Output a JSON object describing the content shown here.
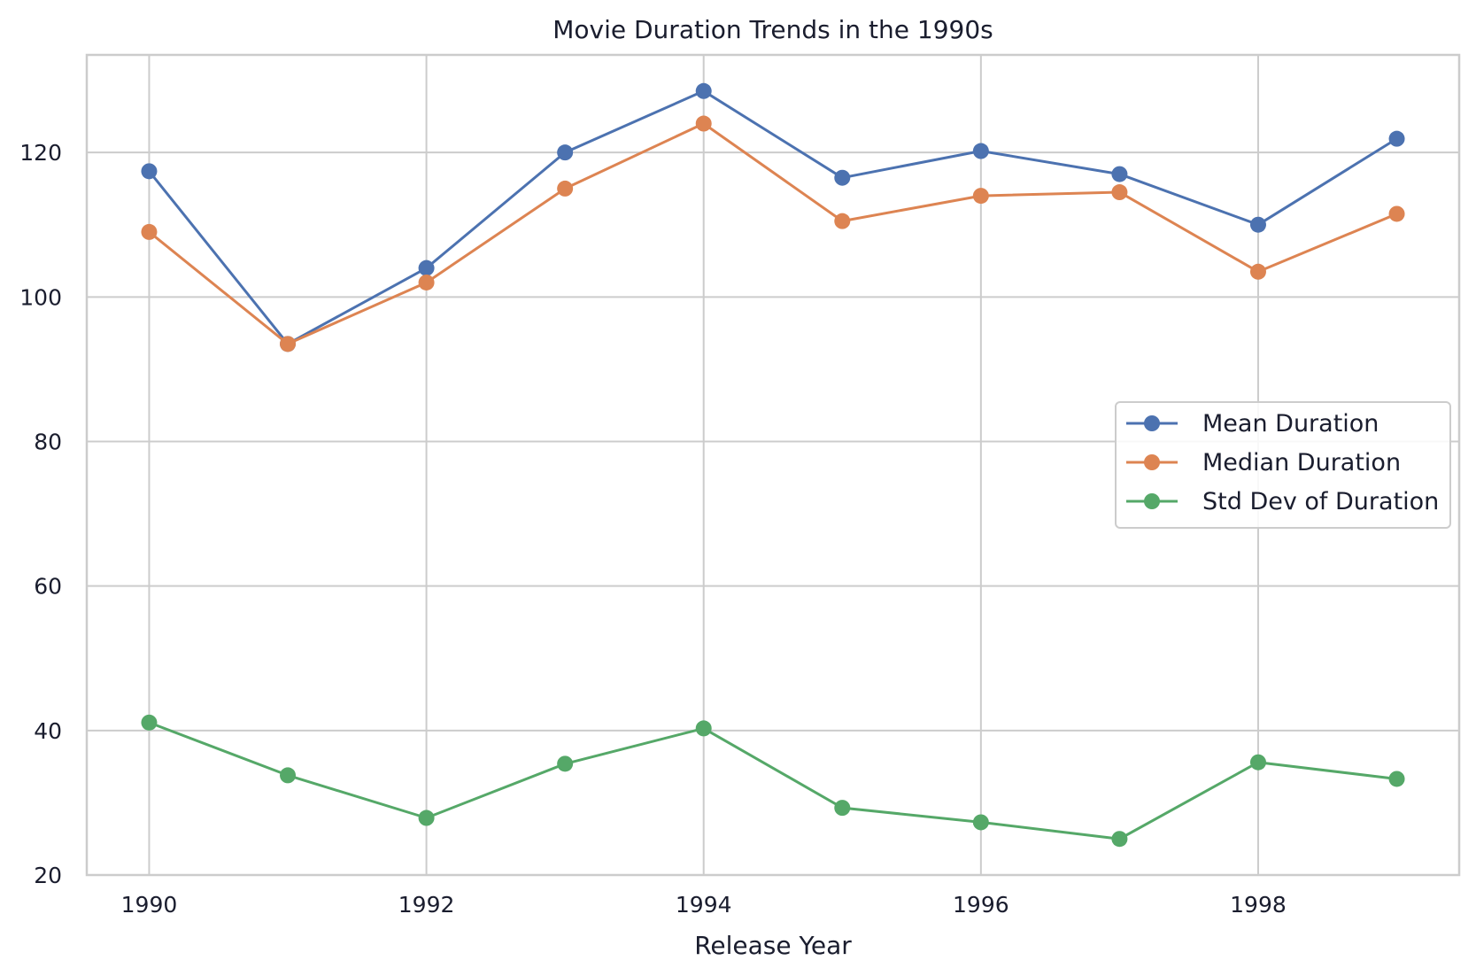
{
  "chart_data": {
    "type": "line",
    "title": "Movie Duration Trends in the 1990s",
    "xlabel": "Release Year",
    "ylabel": "",
    "x": [
      1990,
      1991,
      1992,
      1993,
      1994,
      1995,
      1996,
      1997,
      1998,
      1999
    ],
    "xlim": [
      1989.55,
      1999.45
    ],
    "ylim": [
      20,
      133.5
    ],
    "xticks": [
      1990,
      1992,
      1994,
      1996,
      1998
    ],
    "yticks": [
      20,
      40,
      60,
      80,
      100,
      120
    ],
    "grid": true,
    "legend_position": "center-right",
    "series": [
      {
        "name": "Mean Duration",
        "color": "#4c72b0",
        "marker": "circle",
        "values": [
          117.4,
          93.5,
          104.0,
          120.0,
          128.5,
          116.5,
          120.2,
          117.0,
          110.0,
          121.9
        ]
      },
      {
        "name": "Median Duration",
        "color": "#dd8452",
        "marker": "circle",
        "values": [
          109.0,
          93.5,
          102.0,
          115.0,
          124.0,
          110.5,
          114.0,
          114.5,
          103.5,
          111.5
        ]
      },
      {
        "name": "Std Dev of Duration",
        "color": "#55a868",
        "marker": "circle",
        "values": [
          41.1,
          33.8,
          27.9,
          35.4,
          40.3,
          29.3,
          27.3,
          25.0,
          35.6,
          33.3
        ]
      }
    ]
  }
}
